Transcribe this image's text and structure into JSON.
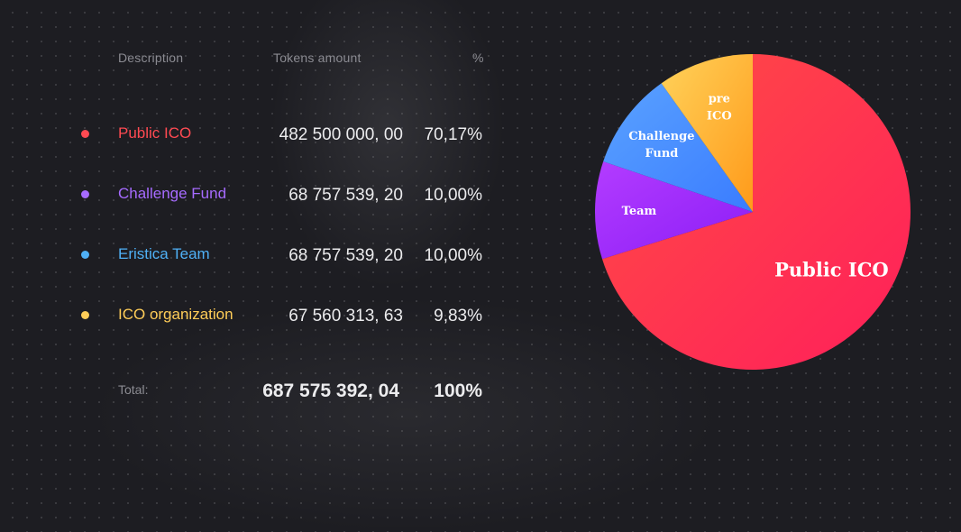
{
  "table": {
    "headers": {
      "description": "Description",
      "tokens": "Tokens amount",
      "percent": "%"
    },
    "rows": [
      {
        "description": "Public ICO",
        "tokens": "482 500 000, 00",
        "percent": "70,17%",
        "color": "#ff4a52"
      },
      {
        "description": "Challenge Fund",
        "tokens": "68 757 539, 20",
        "percent": "10,00%",
        "color": "#a66bff"
      },
      {
        "description": "Eristica Team",
        "tokens": "68 757 539, 20",
        "percent": "10,00%",
        "color": "#4fb0f5"
      },
      {
        "description": "ICO organization",
        "tokens": "67 560 313, 63",
        "percent": "9,83%",
        "color": "#ffcd58"
      }
    ],
    "total": {
      "label": "Total:",
      "tokens": "687 575 392, 04",
      "percent": "100%"
    }
  },
  "chart_data": {
    "type": "pie",
    "slices": [
      {
        "label": "Public ICO",
        "value": 70.17,
        "color_from": "#ff1f5a",
        "color_to": "#ff4d44"
      },
      {
        "label": "Team",
        "value": 10.0,
        "color_from": "#8b1df6",
        "color_to": "#b33cff"
      },
      {
        "label": "Challenge Fund",
        "value": 10.0,
        "color_from": "#3a7cff",
        "color_to": "#5aa2ff"
      },
      {
        "label": "pre ICO",
        "value": 9.83,
        "color_from": "#ff9a1a",
        "color_to": "#ffd25a"
      }
    ]
  }
}
